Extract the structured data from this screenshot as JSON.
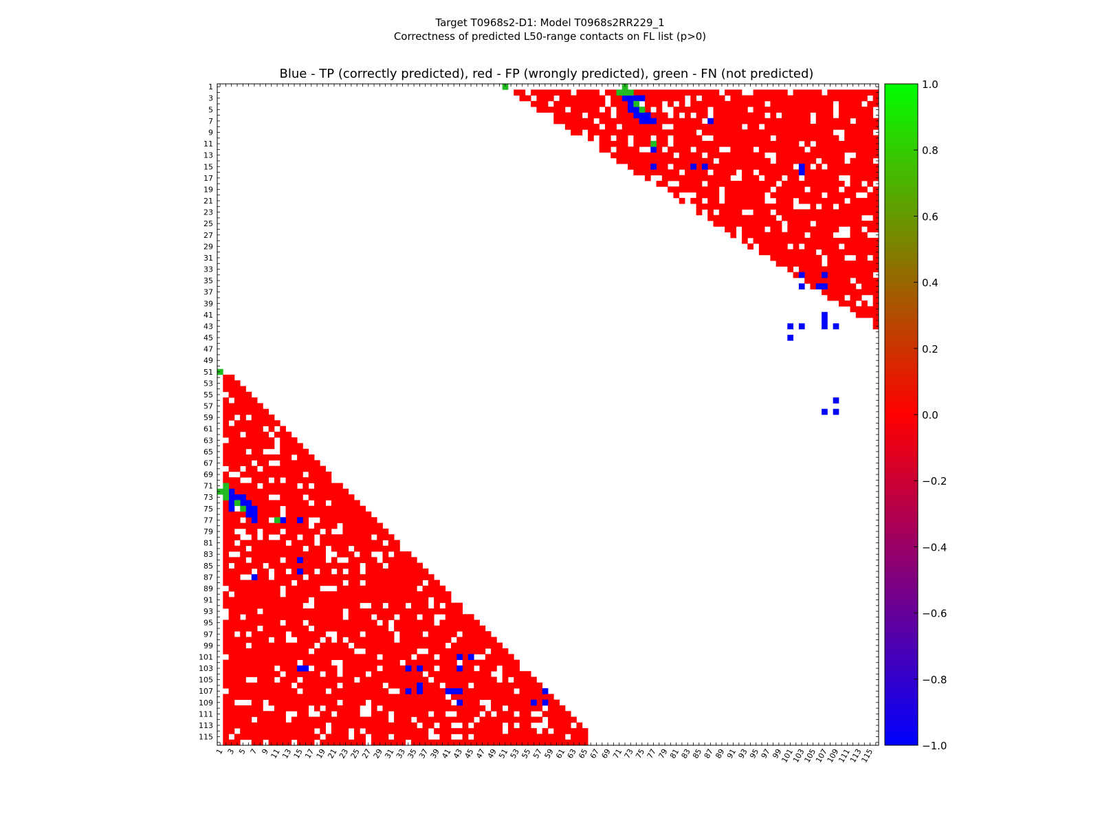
{
  "figure": {
    "suptitle_line1": "Target T0968s2-D1: Model T0968s2RR229_1",
    "suptitle_line2": "Correctness of predicted L50-range contacts on FL list (p>0)",
    "axes_title": "Blue - TP (correctly predicted), red - FP (wrongly predicted), green - FN (not predicted)"
  },
  "chart_data": {
    "type": "heatmap",
    "n": 116,
    "xlabel": "",
    "ylabel": "",
    "x_ticks": [
      "1",
      "3",
      "5",
      "7",
      "9",
      "11",
      "13",
      "15",
      "17",
      "19",
      "21",
      "23",
      "25",
      "27",
      "29",
      "31",
      "33",
      "35",
      "37",
      "39",
      "41",
      "43",
      "45",
      "47",
      "49",
      "51",
      "53",
      "55",
      "57",
      "59",
      "61",
      "63",
      "65",
      "67",
      "69",
      "71",
      "73",
      "75",
      "77",
      "79",
      "81",
      "83",
      "85",
      "87",
      "89",
      "91",
      "93",
      "95",
      "97",
      "99",
      "101",
      "103",
      "105",
      "107",
      "109",
      "111",
      "113",
      "115"
    ],
    "y_ticks": [
      "1",
      "3",
      "5",
      "7",
      "9",
      "11",
      "13",
      "15",
      "17",
      "19",
      "21",
      "23",
      "25",
      "27",
      "29",
      "31",
      "33",
      "35",
      "37",
      "39",
      "41",
      "43",
      "45",
      "47",
      "49",
      "51",
      "53",
      "55",
      "57",
      "59",
      "61",
      "63",
      "65",
      "67",
      "69",
      "71",
      "73",
      "75",
      "77",
      "79",
      "81",
      "83",
      "85",
      "87",
      "89",
      "91",
      "93",
      "95",
      "97",
      "99",
      "101",
      "103",
      "105",
      "107",
      "109",
      "111",
      "113",
      "115"
    ],
    "colorbar": {
      "min": -1.0,
      "max": 1.0,
      "ticks": [
        "1.0",
        "0.8",
        "0.6",
        "0.4",
        "0.2",
        "0.0",
        "−0.2",
        "−0.4",
        "−0.6",
        "−0.8",
        "−1.0"
      ],
      "colors": [
        "#00ff00",
        "#ff0000",
        "#0000ff"
      ]
    },
    "grid": false,
    "legend_colors": {
      "tp": "#0000ff",
      "fp": "#ff0000",
      "fn": "#22bb22"
    },
    "tp_contacts": [
      [
        3,
        72
      ],
      [
        3,
        73
      ],
      [
        3,
        74
      ],
      [
        3,
        75
      ],
      [
        4,
        73
      ],
      [
        5,
        73
      ],
      [
        5,
        74
      ],
      [
        6,
        74
      ],
      [
        6,
        75
      ],
      [
        6,
        76
      ],
      [
        7,
        75
      ],
      [
        7,
        76
      ],
      [
        7,
        77
      ],
      [
        7,
        87
      ],
      [
        12,
        77
      ],
      [
        15,
        77
      ],
      [
        15,
        84
      ],
      [
        15,
        86
      ],
      [
        15,
        103
      ],
      [
        16,
        103
      ],
      [
        34,
        103
      ],
      [
        34,
        107
      ],
      [
        36,
        103
      ],
      [
        36,
        106
      ],
      [
        36,
        107
      ],
      [
        41,
        107
      ],
      [
        42,
        107
      ],
      [
        43,
        101
      ],
      [
        43,
        103
      ],
      [
        43,
        107
      ],
      [
        43,
        109
      ],
      [
        45,
        101
      ],
      [
        56,
        109
      ],
      [
        58,
        107
      ],
      [
        58,
        109
      ]
    ],
    "fn_contacts": [
      [
        1,
        51
      ],
      [
        1,
        72
      ],
      [
        2,
        71
      ],
      [
        2,
        72
      ],
      [
        2,
        73
      ],
      [
        4,
        74
      ],
      [
        5,
        75
      ],
      [
        11,
        77
      ]
    ]
  },
  "matrix_fill": {
    "upper_band_start": 52,
    "lower_band_limit": 65
  }
}
